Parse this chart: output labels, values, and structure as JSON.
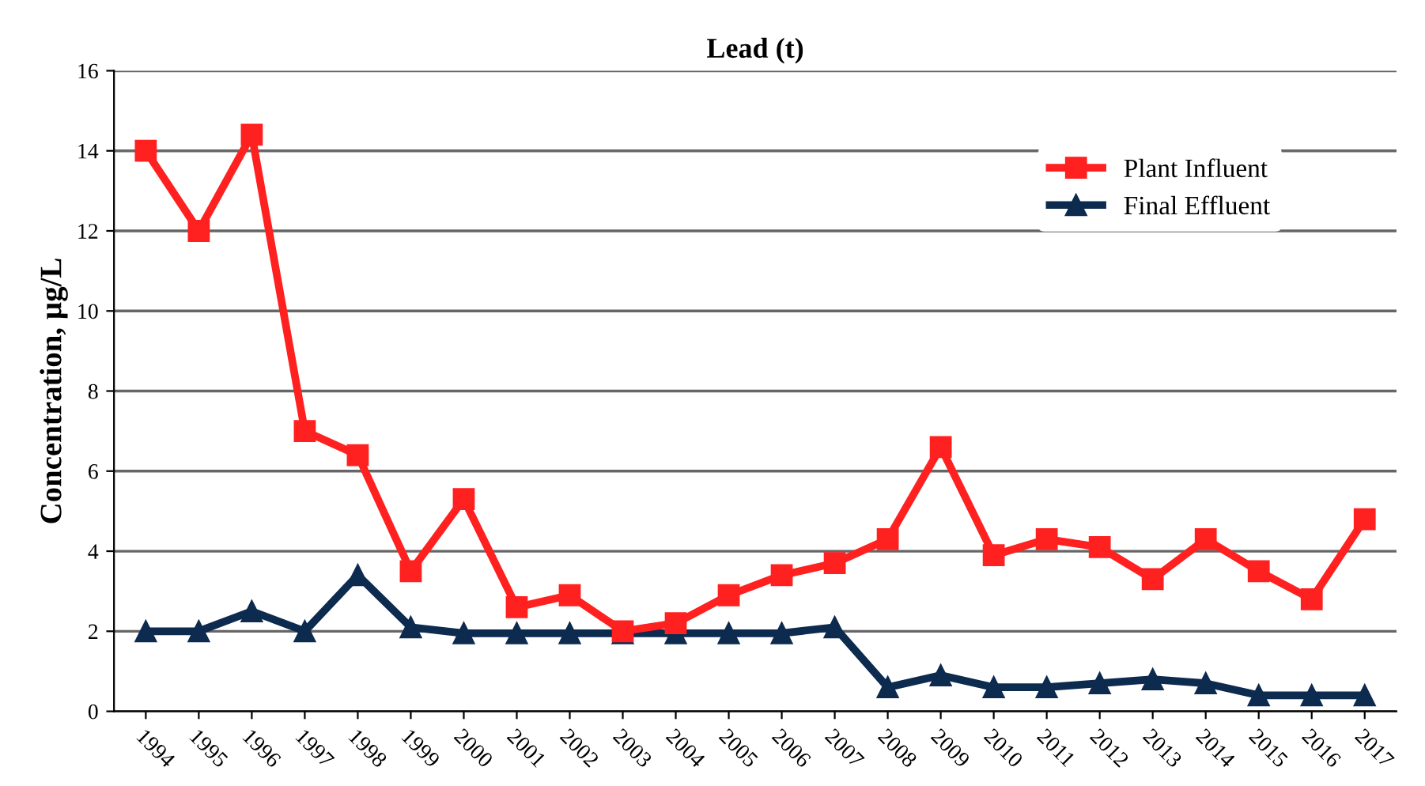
{
  "chart_data": {
    "type": "line",
    "title": "Lead (t)",
    "ylabel": "Concentration, µg/L",
    "categories": [
      "1994",
      "1995",
      "1996",
      "1997",
      "1998",
      "1999",
      "2000",
      "2001",
      "2002",
      "2003",
      "2004",
      "2005",
      "2006",
      "2007",
      "2008",
      "2009",
      "2010",
      "2011",
      "2012",
      "2013",
      "2014",
      "2015",
      "2016",
      "2017"
    ],
    "series": [
      {
        "name": "Plant Influent",
        "color": "#ff2020",
        "marker": "square",
        "values": [
          14,
          12,
          14.4,
          7,
          6.4,
          3.5,
          5.3,
          2.6,
          2.9,
          2.0,
          2.2,
          2.9,
          3.4,
          3.7,
          4.3,
          6.6,
          3.9,
          4.3,
          4.1,
          3.3,
          4.3,
          3.5,
          2.8,
          4.8
        ]
      },
      {
        "name": "Final Effluent",
        "color": "#0d2a4f",
        "marker": "triangle",
        "values": [
          2,
          2,
          2.5,
          2,
          3.4,
          2.1,
          1.95,
          1.95,
          1.95,
          1.95,
          1.95,
          1.95,
          1.95,
          2.1,
          0.6,
          0.9,
          0.6,
          0.6,
          0.7,
          0.8,
          0.7,
          0.4,
          0.4,
          0.4
        ]
      }
    ],
    "ylim": [
      0,
      16
    ],
    "yticks": [
      0,
      2,
      4,
      6,
      8,
      10,
      12,
      14,
      16
    ],
    "grid": "y",
    "legend": "top right"
  }
}
